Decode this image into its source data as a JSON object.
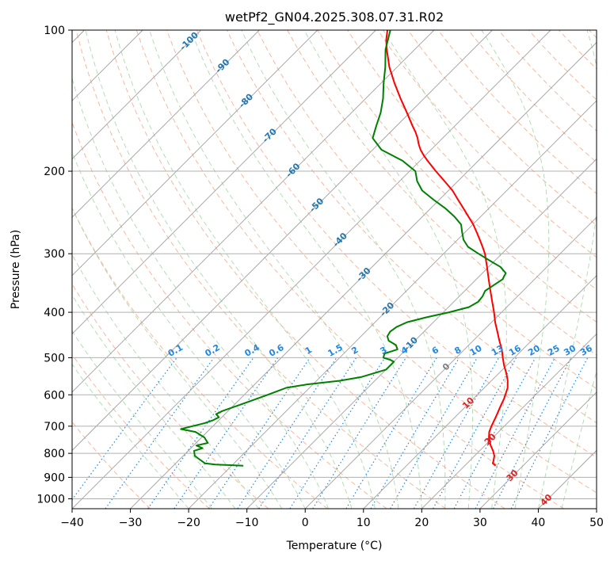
{
  "chart_data": {
    "type": "line",
    "title": "wetPf2_GN04.2025.308.07.31.R02",
    "xlabel": "Temperature (°C)",
    "ylabel": "Pressure (hPa)",
    "xlim": [
      -40,
      50
    ],
    "ylim": [
      1050,
      100
    ],
    "y_scale": "log",
    "skew": true,
    "x_ticks": [
      -40,
      -30,
      -20,
      -10,
      0,
      10,
      20,
      30,
      40,
      50
    ],
    "y_ticks": [
      100,
      200,
      300,
      400,
      500,
      600,
      700,
      800,
      900,
      1000
    ],
    "grid": true,
    "colors": {
      "temperature": "#ff0000",
      "dewpoint": "#008000",
      "isotherm": "#a0a0a0",
      "dry_adiabat": "#f4a582",
      "moist_adiabat": "#9fd49f",
      "mixing_ratio": "#1e88e5",
      "isotherm_label": "#1f77b4",
      "warm_label": "#d62728",
      "zero_label": "#7f7f7f"
    },
    "series": [
      {
        "key": "temperature",
        "points": [
          [
            850,
            25.3
          ],
          [
            840,
            24.4
          ],
          [
            830,
            24.1
          ],
          [
            810,
            23.4
          ],
          [
            790,
            22.3
          ],
          [
            770,
            21.0
          ],
          [
            740,
            19.3
          ],
          [
            720,
            18.4
          ],
          [
            700,
            17.8
          ],
          [
            670,
            17.0
          ],
          [
            640,
            16.1
          ],
          [
            610,
            15.2
          ],
          [
            580,
            14.0
          ],
          [
            560,
            12.8
          ],
          [
            540,
            11.3
          ],
          [
            520,
            9.6
          ],
          [
            500,
            8.0
          ],
          [
            480,
            6.4
          ],
          [
            460,
            4.5
          ],
          [
            440,
            2.6
          ],
          [
            420,
            0.6
          ],
          [
            400,
            -1.3
          ],
          [
            380,
            -3.4
          ],
          [
            360,
            -5.6
          ],
          [
            340,
            -7.9
          ],
          [
            320,
            -10.3
          ],
          [
            300,
            -12.9
          ],
          [
            290,
            -14.5
          ],
          [
            280,
            -16.2
          ],
          [
            270,
            -18.0
          ],
          [
            260,
            -19.9
          ],
          [
            250,
            -22.1
          ],
          [
            240,
            -24.4
          ],
          [
            230,
            -26.8
          ],
          [
            220,
            -29.3
          ],
          [
            210,
            -32.3
          ],
          [
            200,
            -35.5
          ],
          [
            190,
            -38.7
          ],
          [
            185,
            -40.3
          ],
          [
            180,
            -41.8
          ],
          [
            175,
            -43.1
          ],
          [
            170,
            -44.3
          ],
          [
            165,
            -45.7
          ],
          [
            160,
            -47.3
          ],
          [
            150,
            -50.5
          ],
          [
            140,
            -54.0
          ],
          [
            130,
            -57.6
          ],
          [
            120,
            -61.3
          ],
          [
            115,
            -63.0
          ],
          [
            110,
            -64.8
          ],
          [
            105,
            -66.5
          ],
          [
            100,
            -68.0
          ]
        ]
      },
      {
        "key": "dewpoint",
        "points": [
          [
            850,
            -18
          ],
          [
            848,
            -20
          ],
          [
            845,
            -23
          ],
          [
            840,
            -25
          ],
          [
            830,
            -26
          ],
          [
            820,
            -27
          ],
          [
            810,
            -28
          ],
          [
            800,
            -28.5
          ],
          [
            790,
            -29
          ],
          [
            780,
            -28
          ],
          [
            770,
            -29.5
          ],
          [
            760,
            -28
          ],
          [
            740,
            -29.5
          ],
          [
            720,
            -32
          ],
          [
            710,
            -35
          ],
          [
            700,
            -33.5
          ],
          [
            690,
            -32
          ],
          [
            680,
            -31
          ],
          [
            670,
            -30.5
          ],
          [
            660,
            -31.5
          ],
          [
            650,
            -31
          ],
          [
            640,
            -30
          ],
          [
            620,
            -28
          ],
          [
            600,
            -26
          ],
          [
            590,
            -25
          ],
          [
            580,
            -24
          ],
          [
            570,
            -21
          ],
          [
            560,
            -16
          ],
          [
            550,
            -13
          ],
          [
            530,
            -10
          ],
          [
            510,
            -10
          ],
          [
            505,
            -11
          ],
          [
            500,
            -12.5
          ],
          [
            490,
            -13
          ],
          [
            480,
            -11.5
          ],
          [
            470,
            -12.5
          ],
          [
            460,
            -14.5
          ],
          [
            450,
            -15.5
          ],
          [
            440,
            -15.8
          ],
          [
            430,
            -15.5
          ],
          [
            420,
            -14.5
          ],
          [
            410,
            -12
          ],
          [
            400,
            -9
          ],
          [
            390,
            -6.5
          ],
          [
            380,
            -5.8
          ],
          [
            370,
            -6
          ],
          [
            360,
            -6.5
          ],
          [
            350,
            -6
          ],
          [
            340,
            -5.5
          ],
          [
            330,
            -6
          ],
          [
            320,
            -8
          ],
          [
            310,
            -11
          ],
          [
            300,
            -14
          ],
          [
            290,
            -17
          ],
          [
            280,
            -19
          ],
          [
            270,
            -20.5
          ],
          [
            260,
            -22
          ],
          [
            250,
            -24.5
          ],
          [
            240,
            -27.5
          ],
          [
            230,
            -31
          ],
          [
            220,
            -34.5
          ],
          [
            210,
            -37
          ],
          [
            200,
            -39
          ],
          [
            190,
            -43
          ],
          [
            180,
            -48.5
          ],
          [
            170,
            -52
          ],
          [
            160,
            -53.5
          ],
          [
            150,
            -55
          ],
          [
            140,
            -57
          ],
          [
            130,
            -59.5
          ],
          [
            120,
            -62
          ],
          [
            110,
            -65
          ],
          [
            100,
            -67.5
          ]
        ]
      }
    ],
    "isotherm_labels": [
      "-100",
      "-90",
      "-80",
      "-70",
      "-60",
      "-50",
      "-40",
      "-30",
      "-20",
      "-10",
      "0",
      "10",
      "20",
      "30",
      "40"
    ],
    "mixing_ratio_labels": [
      "0.1",
      "0.2",
      "0.4",
      "0.6",
      "1",
      "1.5",
      "2",
      "3",
      "4",
      "6",
      "8",
      "10",
      "13",
      "16",
      "20",
      "25",
      "30",
      "36"
    ]
  }
}
